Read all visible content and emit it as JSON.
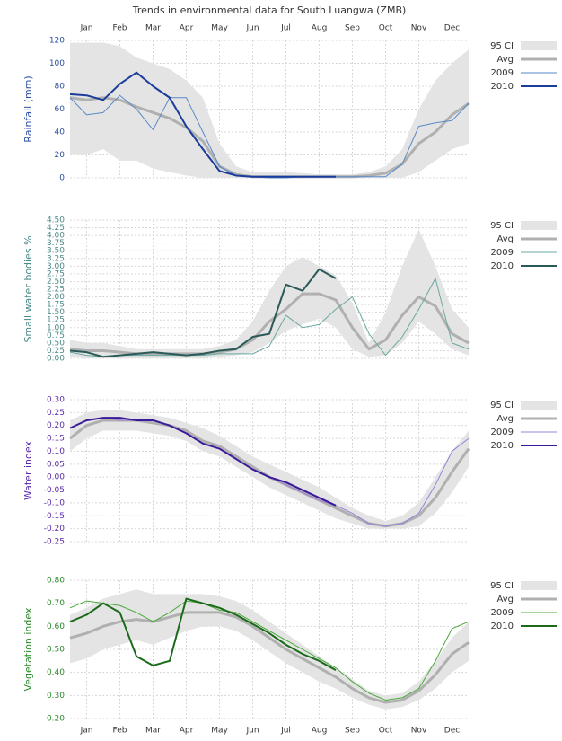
{
  "chart_data": [
    {
      "type": "line",
      "title": "Trends in environmental data for South Luangwa (ZMB)",
      "y_label": "Rainfall (mm)",
      "axis_color": "#2a4fa0",
      "xaxis_position": "top",
      "x": [
        0,
        0.5,
        1,
        1.5,
        2,
        2.5,
        3,
        3.5,
        4,
        4.5,
        5,
        5.5,
        6,
        6.5,
        7,
        7.5,
        8,
        8.5,
        9,
        9.5,
        10,
        10.5,
        11,
        11.5,
        12
      ],
      "xlim": [
        0,
        12
      ],
      "xticks": [
        {
          "value": 0.5,
          "label": "Jan"
        },
        {
          "value": 1.5,
          "label": "Feb"
        },
        {
          "value": 2.5,
          "label": "Mar"
        },
        {
          "value": 3.5,
          "label": "Apr"
        },
        {
          "value": 4.5,
          "label": "May"
        },
        {
          "value": 5.5,
          "label": "Jun"
        },
        {
          "value": 6.5,
          "label": "Jul"
        },
        {
          "value": 7.5,
          "label": "Aug"
        },
        {
          "value": 8.5,
          "label": "Sep"
        },
        {
          "value": 9.5,
          "label": "Oct"
        },
        {
          "value": 10.5,
          "label": "Nov"
        },
        {
          "value": 11.5,
          "label": "Dec"
        }
      ],
      "ylim": [
        0,
        120
      ],
      "yticks": [
        0,
        20,
        40,
        60,
        80,
        100,
        120
      ],
      "grid": true,
      "series": [
        {
          "name": "95 CI",
          "color": "#e4e4e4",
          "upper": [
            118,
            118,
            118,
            115,
            105,
            100,
            95,
            85,
            70,
            30,
            10,
            5,
            5,
            5,
            4,
            3,
            3,
            3,
            5,
            10,
            25,
            60,
            85,
            100,
            112
          ],
          "lower": [
            20,
            20,
            25,
            15,
            15,
            8,
            5,
            2,
            0,
            0,
            0,
            0,
            0,
            0,
            0,
            0,
            0,
            0,
            0,
            0,
            0,
            5,
            15,
            25,
            30
          ]
        },
        {
          "name": "Avg",
          "color": "#b0b0b0",
          "width": 3,
          "values": [
            70,
            68,
            70,
            68,
            62,
            57,
            52,
            44,
            32,
            10,
            3,
            1,
            1,
            1,
            1,
            1,
            1,
            1,
            2,
            4,
            12,
            30,
            40,
            55,
            65
          ]
        },
        {
          "name": "2009",
          "color": "#5a8ac8",
          "width": 1,
          "values": [
            70,
            55,
            57,
            72,
            60,
            42,
            70,
            70,
            40,
            10,
            2,
            1,
            0,
            0,
            1,
            1,
            1,
            1,
            1,
            1,
            12,
            45,
            48,
            50,
            65
          ]
        },
        {
          "name": "2010",
          "color": "#1a3c9c",
          "width": 2,
          "values": [
            73,
            72,
            68,
            82,
            92,
            80,
            70,
            45,
            25,
            6,
            2,
            1,
            1,
            1,
            1,
            1,
            1,
            null,
            null,
            null,
            null,
            null,
            null,
            null,
            null
          ]
        }
      ]
    },
    {
      "type": "line",
      "y_label": "Small water bodies %",
      "axis_color": "#4a8a88",
      "x": [
        0,
        0.5,
        1,
        1.5,
        2,
        2.5,
        3,
        3.5,
        4,
        4.5,
        5,
        5.5,
        6,
        6.5,
        7,
        7.5,
        8,
        8.5,
        9,
        9.5,
        10,
        10.5,
        11,
        11.5,
        12
      ],
      "xlim": [
        0,
        12
      ],
      "xticks": [
        0.5,
        1.5,
        2.5,
        3.5,
        4.5,
        5.5,
        6.5,
        7.5,
        8.5,
        9.5,
        10.5,
        11.5
      ],
      "ylim": [
        0,
        4.5
      ],
      "yticks": [
        {
          "value": 0,
          "label": "0.00"
        },
        {
          "value": 0.25,
          "label": "0.25"
        },
        {
          "value": 0.5,
          "label": "0.50"
        },
        {
          "value": 0.75,
          "label": "0.75"
        },
        {
          "value": 1,
          "label": "1.00"
        },
        {
          "value": 1.25,
          "label": "1.25"
        },
        {
          "value": 1.5,
          "label": "1.50"
        },
        {
          "value": 1.75,
          "label": "1.75"
        },
        {
          "value": 2,
          "label": "2.00"
        },
        {
          "value": 2.25,
          "label": "2.25"
        },
        {
          "value": 2.5,
          "label": "2.50"
        },
        {
          "value": 2.75,
          "label": "2.75"
        },
        {
          "value": 3,
          "label": "3.00"
        },
        {
          "value": 3.25,
          "label": "3.25"
        },
        {
          "value": 3.5,
          "label": "3.50"
        },
        {
          "value": 3.75,
          "label": "3.75"
        },
        {
          "value": 4,
          "label": "4.00"
        },
        {
          "value": 4.25,
          "label": "4.25"
        },
        {
          "value": 4.5,
          "label": "4.50"
        }
      ],
      "grid": true,
      "series": [
        {
          "name": "95 CI",
          "color": "#e4e4e4",
          "upper": [
            0.6,
            0.5,
            0.5,
            0.4,
            0.3,
            0.3,
            0.3,
            0.3,
            0.3,
            0.4,
            0.6,
            1.2,
            2.2,
            3.0,
            3.3,
            3.0,
            2.7,
            1.8,
            0.5,
            1.5,
            3.0,
            4.2,
            3.0,
            1.6,
            1.0
          ],
          "lower": [
            0.05,
            0,
            0,
            0,
            0,
            0,
            0,
            0,
            0,
            0.05,
            0.1,
            0.2,
            0.5,
            0.9,
            1.1,
            1.3,
            1.0,
            0.3,
            0.05,
            0.1,
            0.5,
            1.2,
            0.8,
            0.3,
            0.1
          ]
        },
        {
          "name": "Avg",
          "color": "#b0b0b0",
          "width": 3,
          "values": [
            0.3,
            0.25,
            0.25,
            0.2,
            0.15,
            0.15,
            0.15,
            0.15,
            0.15,
            0.2,
            0.3,
            0.6,
            1.2,
            1.6,
            2.1,
            2.1,
            1.9,
            1.0,
            0.3,
            0.6,
            1.4,
            2.0,
            1.7,
            0.8,
            0.5
          ]
        },
        {
          "name": "2009",
          "color": "#6aa8a0",
          "width": 1,
          "values": [
            0.2,
            0.1,
            0.05,
            0.1,
            0.1,
            0.1,
            0.1,
            0.1,
            0.1,
            0.15,
            0.15,
            0.15,
            0.4,
            1.4,
            1.0,
            1.1,
            1.6,
            2.0,
            0.8,
            0.1,
            0.7,
            1.6,
            2.6,
            0.5,
            0.3
          ]
        },
        {
          "name": "2010",
          "color": "#2a5a58",
          "width": 2,
          "values": [
            0.25,
            0.2,
            0.05,
            0.1,
            0.15,
            0.2,
            0.15,
            0.1,
            0.15,
            0.25,
            0.3,
            0.7,
            0.8,
            2.4,
            2.2,
            2.9,
            2.6,
            null,
            null,
            null,
            null,
            null,
            null,
            null,
            null
          ]
        }
      ]
    },
    {
      "type": "line",
      "y_label": "Water index",
      "axis_color": "#5a2aa8",
      "x": [
        0,
        0.5,
        1,
        1.5,
        2,
        2.5,
        3,
        3.5,
        4,
        4.5,
        5,
        5.5,
        6,
        6.5,
        7,
        7.5,
        8,
        8.5,
        9,
        9.5,
        10,
        10.5,
        11,
        11.5,
        12
      ],
      "xlim": [
        0,
        12
      ],
      "xticks": [
        0.5,
        1.5,
        2.5,
        3.5,
        4.5,
        5.5,
        6.5,
        7.5,
        8.5,
        9.5,
        10.5,
        11.5
      ],
      "ylim": [
        -0.25,
        0.3
      ],
      "yticks": [
        {
          "value": -0.25,
          "label": "-0.25"
        },
        {
          "value": -0.2,
          "label": "-0.20"
        },
        {
          "value": -0.15,
          "label": "-0.15"
        },
        {
          "value": -0.1,
          "label": "-0.10"
        },
        {
          "value": -0.05,
          "label": "-0.05"
        },
        {
          "value": 0,
          "label": "0.00"
        },
        {
          "value": 0.05,
          "label": "0.05"
        },
        {
          "value": 0.1,
          "label": "0.10"
        },
        {
          "value": 0.15,
          "label": "0.15"
        },
        {
          "value": 0.2,
          "label": "0.20"
        },
        {
          "value": 0.25,
          "label": "0.25"
        },
        {
          "value": 0.3,
          "label": "0.30"
        }
      ],
      "grid": true,
      "series": [
        {
          "name": "95 CI",
          "color": "#e4e4e4",
          "upper": [
            0.22,
            0.25,
            0.26,
            0.26,
            0.25,
            0.24,
            0.23,
            0.21,
            0.19,
            0.16,
            0.12,
            0.08,
            0.05,
            0.02,
            -0.01,
            -0.04,
            -0.08,
            -0.12,
            -0.15,
            -0.17,
            -0.15,
            -0.1,
            0.0,
            0.1,
            0.18
          ],
          "lower": [
            0.1,
            0.15,
            0.18,
            0.18,
            0.18,
            0.17,
            0.16,
            0.14,
            0.1,
            0.08,
            0.04,
            0.0,
            -0.04,
            -0.07,
            -0.1,
            -0.13,
            -0.16,
            -0.18,
            -0.2,
            -0.2,
            -0.2,
            -0.19,
            -0.14,
            -0.06,
            0.04
          ]
        },
        {
          "name": "Avg",
          "color": "#b0b0b0",
          "width": 3,
          "values": [
            0.15,
            0.2,
            0.22,
            0.22,
            0.22,
            0.21,
            0.2,
            0.18,
            0.14,
            0.12,
            0.08,
            0.04,
            0.0,
            -0.03,
            -0.06,
            -0.09,
            -0.12,
            -0.15,
            -0.18,
            -0.19,
            -0.18,
            -0.15,
            -0.08,
            0.02,
            0.11
          ]
        },
        {
          "name": "2009",
          "color": "#9a80d8",
          "width": 1,
          "values": [
            0.19,
            0.22,
            0.23,
            0.22,
            0.22,
            0.22,
            0.2,
            0.17,
            0.13,
            0.11,
            0.07,
            0.03,
            0.0,
            -0.03,
            -0.06,
            -0.09,
            -0.11,
            -0.14,
            -0.18,
            -0.19,
            -0.18,
            -0.14,
            -0.03,
            0.1,
            0.15
          ]
        },
        {
          "name": "2010",
          "color": "#3a1a9a",
          "width": 2,
          "values": [
            0.19,
            0.22,
            0.23,
            0.23,
            0.22,
            0.22,
            0.2,
            0.17,
            0.13,
            0.11,
            0.07,
            0.03,
            0.0,
            -0.02,
            -0.05,
            -0.08,
            -0.11,
            null,
            null,
            null,
            null,
            null,
            null,
            null,
            null
          ]
        }
      ]
    },
    {
      "type": "line",
      "y_label": "Vegetation index",
      "axis_color": "#2a8a2a",
      "xaxis_position": "bottom",
      "x": [
        0,
        0.5,
        1,
        1.5,
        2,
        2.5,
        3,
        3.5,
        4,
        4.5,
        5,
        5.5,
        6,
        6.5,
        7,
        7.5,
        8,
        8.5,
        9,
        9.5,
        10,
        10.5,
        11,
        11.5,
        12
      ],
      "xlim": [
        0,
        12
      ],
      "xticks": [
        {
          "value": 0.5,
          "label": "Jan"
        },
        {
          "value": 1.5,
          "label": "Feb"
        },
        {
          "value": 2.5,
          "label": "Mar"
        },
        {
          "value": 3.5,
          "label": "Apr"
        },
        {
          "value": 4.5,
          "label": "May"
        },
        {
          "value": 5.5,
          "label": "Jun"
        },
        {
          "value": 6.5,
          "label": "Jul"
        },
        {
          "value": 7.5,
          "label": "Aug"
        },
        {
          "value": 8.5,
          "label": "Sep"
        },
        {
          "value": 9.5,
          "label": "Oct"
        },
        {
          "value": 10.5,
          "label": "Nov"
        },
        {
          "value": 11.5,
          "label": "Dec"
        }
      ],
      "ylim": [
        0.2,
        0.8
      ],
      "yticks": [
        {
          "value": 0.2,
          "label": "0.20"
        },
        {
          "value": 0.3,
          "label": "0.30"
        },
        {
          "value": 0.4,
          "label": "0.40"
        },
        {
          "value": 0.5,
          "label": "0.50"
        },
        {
          "value": 0.6,
          "label": "0.60"
        },
        {
          "value": 0.7,
          "label": "0.70"
        },
        {
          "value": 0.8,
          "label": "0.80"
        }
      ],
      "grid": true,
      "series": [
        {
          "name": "95 CI",
          "color": "#e4e4e4",
          "upper": [
            0.65,
            0.68,
            0.72,
            0.74,
            0.76,
            0.74,
            0.74,
            0.74,
            0.74,
            0.73,
            0.71,
            0.67,
            0.62,
            0.57,
            0.52,
            0.47,
            0.42,
            0.37,
            0.32,
            0.3,
            0.31,
            0.36,
            0.45,
            0.55,
            0.62
          ],
          "lower": [
            0.44,
            0.46,
            0.5,
            0.52,
            0.54,
            0.52,
            0.55,
            0.58,
            0.6,
            0.6,
            0.58,
            0.54,
            0.49,
            0.44,
            0.4,
            0.36,
            0.33,
            0.29,
            0.26,
            0.24,
            0.25,
            0.28,
            0.33,
            0.4,
            0.45
          ]
        },
        {
          "name": "Avg",
          "color": "#b0b0b0",
          "width": 3,
          "values": [
            0.55,
            0.57,
            0.6,
            0.62,
            0.63,
            0.62,
            0.64,
            0.66,
            0.66,
            0.66,
            0.64,
            0.6,
            0.55,
            0.5,
            0.46,
            0.42,
            0.38,
            0.33,
            0.29,
            0.27,
            0.28,
            0.32,
            0.39,
            0.48,
            0.53
          ]
        },
        {
          "name": "2009",
          "color": "#4aa83a",
          "width": 1,
          "values": [
            0.68,
            0.71,
            0.7,
            0.69,
            0.66,
            0.62,
            0.66,
            0.71,
            0.7,
            0.67,
            0.66,
            0.62,
            0.58,
            0.54,
            0.5,
            0.46,
            0.42,
            0.36,
            0.31,
            0.28,
            0.29,
            0.33,
            0.45,
            0.59,
            0.62
          ]
        },
        {
          "name": "2010",
          "color": "#1a6a1a",
          "width": 2,
          "values": [
            0.62,
            0.65,
            0.7,
            0.66,
            0.47,
            0.43,
            0.45,
            0.72,
            0.7,
            0.68,
            0.65,
            0.61,
            0.57,
            0.52,
            0.48,
            0.45,
            0.41,
            null,
            null,
            null,
            null,
            null,
            null,
            null,
            null
          ]
        }
      ]
    }
  ]
}
